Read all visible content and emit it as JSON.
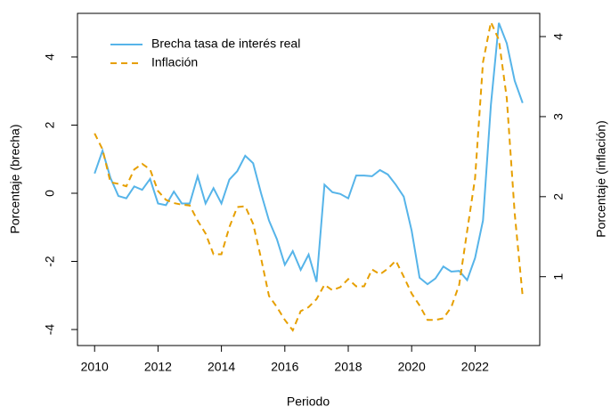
{
  "chart_data": {
    "type": "line",
    "xlabel": "Periodo",
    "ylabel": "Porcentaje (brecha)",
    "y2label": "Porcentaje (inflación)",
    "x": [
      2010,
      2010.25,
      2010.5,
      2010.75,
      2011,
      2011.25,
      2011.5,
      2011.75,
      2012,
      2012.25,
      2012.5,
      2012.75,
      2013,
      2013.25,
      2013.5,
      2013.75,
      2014,
      2014.25,
      2014.5,
      2014.75,
      2015,
      2015.25,
      2015.5,
      2015.75,
      2016,
      2016.25,
      2016.5,
      2016.75,
      2017,
      2017.25,
      2017.5,
      2017.75,
      2018,
      2018.25,
      2018.5,
      2018.75,
      2019,
      2019.25,
      2019.5,
      2019.75,
      2020,
      2020.25,
      2020.5,
      2020.75,
      2021,
      2021.25,
      2021.5,
      2021.75,
      2022,
      2022.25,
      2022.5,
      2022.75,
      2023,
      2023.25,
      2023.5
    ],
    "series": [
      {
        "name": "Brecha tasa de interés real",
        "color": "#56b4e9",
        "linestyle": "solid",
        "values": [
          0.58,
          1.25,
          0.45,
          -0.08,
          -0.15,
          0.2,
          0.1,
          0.42,
          -0.3,
          -0.35,
          0.05,
          -0.3,
          -0.3,
          0.5,
          -0.3,
          0.15,
          -0.3,
          0.4,
          0.65,
          1.1,
          0.88,
          0,
          -0.8,
          -1.35,
          -2.1,
          -1.7,
          -2.25,
          -1.8,
          -2.6,
          0.25,
          0.03,
          -0.02,
          -0.15,
          0.52,
          0.52,
          0.5,
          0.68,
          0.55,
          0.25,
          -0.1,
          -1.1,
          -2.48,
          -2.67,
          -2.5,
          -2.15,
          -2.3,
          -2.28,
          -2.55,
          -1.9,
          -0.8,
          2.6,
          5.0,
          4.4,
          3.3,
          2.65
        ]
      },
      {
        "name": "Inflación",
        "color": "#e69f00",
        "linestyle": "dashed",
        "axis": "y2",
        "values": [
          2.79,
          2.59,
          2.18,
          2.16,
          2.13,
          2.34,
          2.41,
          2.34,
          2.07,
          1.96,
          1.92,
          1.9,
          1.89,
          1.7,
          1.54,
          1.28,
          1.28,
          1.62,
          1.87,
          1.88,
          1.66,
          1.23,
          0.76,
          0.62,
          0.46,
          0.33,
          0.57,
          0.62,
          0.72,
          0.9,
          0.83,
          0.87,
          0.97,
          0.88,
          0.88,
          1.09,
          1.03,
          1.1,
          1.2,
          1.0,
          0.79,
          0.64,
          0.46,
          0.46,
          0.48,
          0.62,
          0.9,
          1.57,
          2.23,
          3.68,
          4.18,
          3.96,
          3.23,
          1.79,
          0.76
        ]
      }
    ],
    "xlim": [
      2009.46,
      2024.04
    ],
    "xticks": [
      2010,
      2012,
      2014,
      2016,
      2018,
      2020,
      2022
    ],
    "ylim": [
      -4.47,
      5.28
    ],
    "yticks": [
      -4,
      -2,
      0,
      2,
      4
    ],
    "y2lim": [
      0.14,
      4.29
    ],
    "y2ticks": [
      1,
      2,
      3,
      4
    ],
    "legend": "top-left"
  }
}
